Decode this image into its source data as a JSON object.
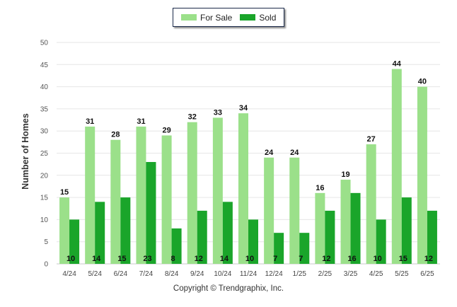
{
  "legend": [
    {
      "name": "For Sale",
      "color": "#9be08a"
    },
    {
      "name": "Sold",
      "color": "#1aa52a"
    }
  ],
  "copyright": "Copyright © Trendgraphix, Inc.",
  "chart_data": {
    "type": "bar",
    "ylabel": "Number of Homes",
    "ylim": [
      0,
      50
    ],
    "yticks": [
      0,
      5,
      10,
      15,
      20,
      25,
      30,
      35,
      40,
      45,
      50
    ],
    "grid": true,
    "legend_position": "top-center",
    "categories": [
      "4/24",
      "5/24",
      "6/24",
      "7/24",
      "8/24",
      "9/24",
      "10/24",
      "11/24",
      "12/24",
      "1/25",
      "2/25",
      "3/25",
      "4/25",
      "5/25",
      "6/25"
    ],
    "series": [
      {
        "name": "For Sale",
        "color": "#9be08a",
        "values": [
          15,
          31,
          28,
          31,
          29,
          32,
          33,
          34,
          24,
          24,
          16,
          19,
          27,
          44,
          40
        ]
      },
      {
        "name": "Sold",
        "color": "#1aa52a",
        "values": [
          10,
          14,
          15,
          23,
          8,
          12,
          14,
          10,
          7,
          7,
          12,
          16,
          10,
          15,
          12
        ]
      }
    ]
  }
}
